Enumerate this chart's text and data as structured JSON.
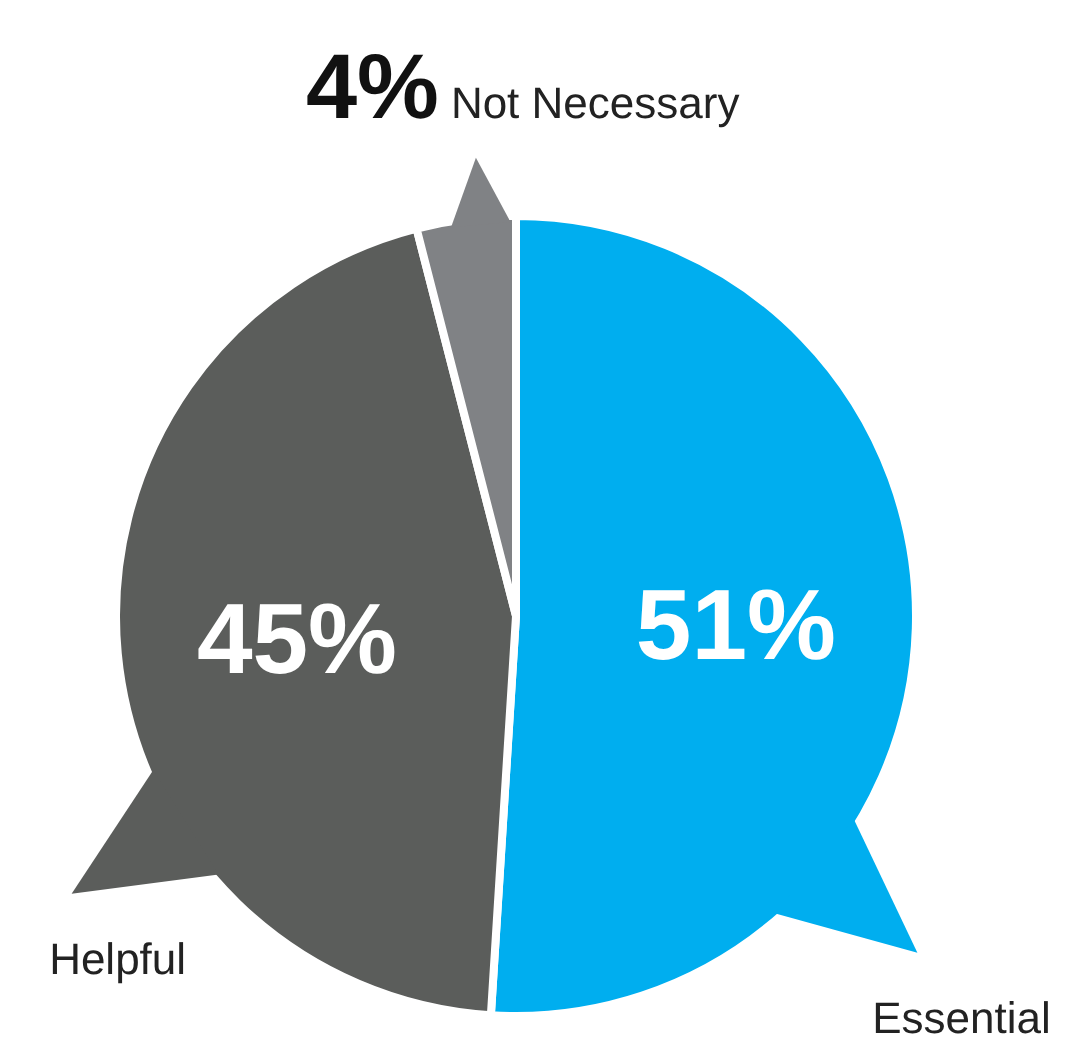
{
  "chart_data": {
    "type": "pie",
    "categories": [
      "Essential",
      "Helpful",
      "Not Necessary"
    ],
    "values": [
      51,
      45,
      4
    ],
    "colors": [
      "#00aeef",
      "#5b5d5b",
      "#808285"
    ],
    "value_labels": [
      "51%",
      "45%",
      "4%"
    ]
  }
}
